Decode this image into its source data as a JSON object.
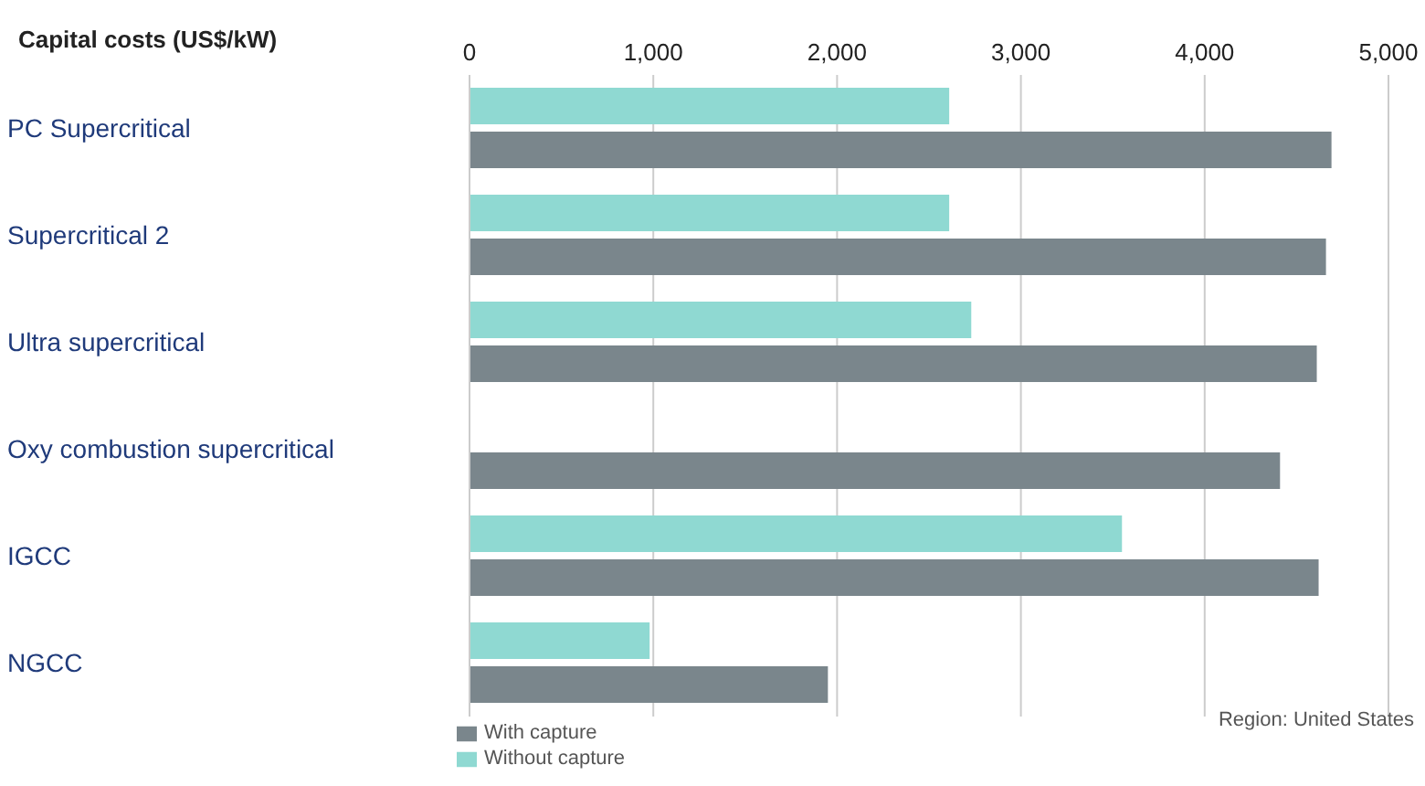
{
  "chart_data": {
    "type": "bar",
    "orientation": "horizontal",
    "categories": [
      "PC Supercritical",
      "Supercritical 2",
      "Ultra supercritical",
      "Oxy combustion supercritical",
      "IGCC",
      "NGCC"
    ],
    "series": [
      {
        "name": "Without capture",
        "color": "#8fd9d2",
        "values": [
          2610,
          2610,
          2730,
          null,
          3550,
          980
        ]
      },
      {
        "name": "With capture",
        "color": "#7a868c",
        "values": [
          4690,
          4660,
          4610,
          4410,
          4620,
          1950
        ]
      }
    ],
    "xlim": [
      0,
      5000
    ],
    "xticks": [
      0,
      {
        "value": 1000,
        "label": "1,000"
      },
      {
        "value": 2000,
        "label": "2,000"
      },
      {
        "value": 3000,
        "label": "3,000"
      },
      {
        "value": 4000,
        "label": "4,000"
      },
      {
        "value": 5000,
        "label": "5,000"
      }
    ],
    "grid": "x",
    "legend": "bottom left",
    "annotations": [
      "Capital costs (US$/kW)",
      "Region: United States"
    ]
  }
}
